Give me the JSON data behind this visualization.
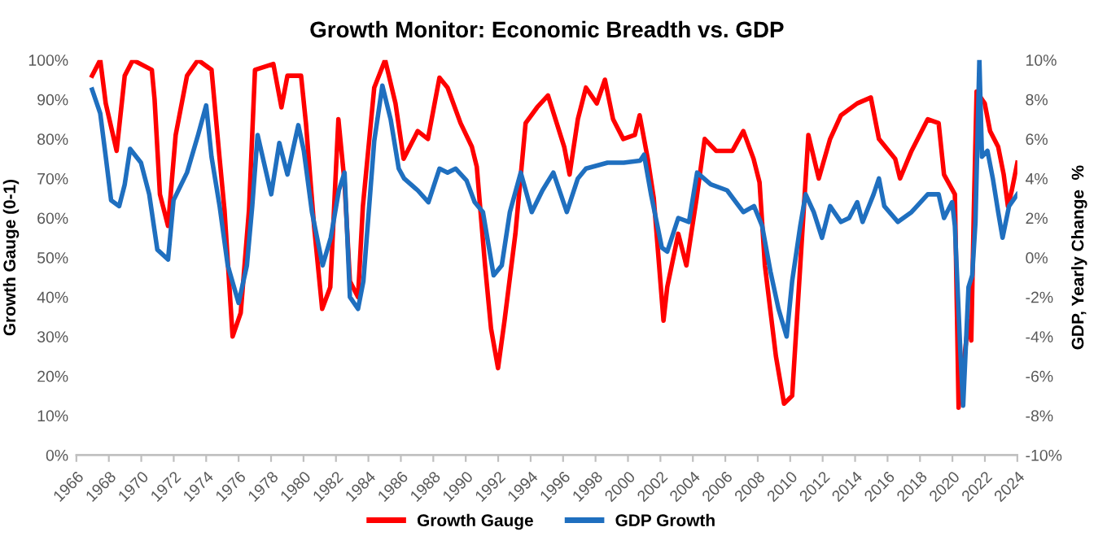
{
  "chart_data": {
    "type": "line",
    "title": "Growth Monitor: Economic Breadth vs. GDP",
    "ylabel": "Growth Gauge (0-1)",
    "y2label": "GDP, Yearly Change  %",
    "xlim": [
      1966,
      2024
    ],
    "xticks": [
      1966,
      1968,
      1970,
      1972,
      1974,
      1976,
      1978,
      1980,
      1982,
      1984,
      1986,
      1988,
      1990,
      1992,
      1994,
      1996,
      1998,
      2000,
      2002,
      2004,
      2006,
      2008,
      2010,
      2012,
      2014,
      2016,
      2018,
      2020,
      2022,
      2024
    ],
    "ylim": [
      0,
      100
    ],
    "yticks": [
      {
        "value": 0,
        "label": "0%"
      },
      {
        "value": 10,
        "label": "10%"
      },
      {
        "value": 20,
        "label": "20%"
      },
      {
        "value": 30,
        "label": "30%"
      },
      {
        "value": 40,
        "label": "40%"
      },
      {
        "value": 50,
        "label": "50%"
      },
      {
        "value": 60,
        "label": "60%"
      },
      {
        "value": 70,
        "label": "70%"
      },
      {
        "value": 80,
        "label": "80%"
      },
      {
        "value": 90,
        "label": "90%"
      },
      {
        "value": 100,
        "label": "100%"
      }
    ],
    "y2lim": [
      -10,
      10
    ],
    "y2ticks": [
      {
        "value": -10,
        "label": "-10%"
      },
      {
        "value": -8,
        "label": "-8%"
      },
      {
        "value": -6,
        "label": "-6%"
      },
      {
        "value": -4,
        "label": "-4%"
      },
      {
        "value": -2,
        "label": "-2%"
      },
      {
        "value": 0,
        "label": "0%"
      },
      {
        "value": 2,
        "label": "2%"
      },
      {
        "value": 4,
        "label": "4%"
      },
      {
        "value": 6,
        "label": "6%"
      },
      {
        "value": 8,
        "label": "8%"
      },
      {
        "value": 10,
        "label": "10%"
      }
    ],
    "grid": false,
    "legend": "bottom",
    "marker": "none",
    "line_style": "solid",
    "series": [
      {
        "name": "Growth Gauge",
        "color": "#ff0000",
        "x": [
          1966.97,
          1967.47,
          1967.81,
          1968.48,
          1968.98,
          1969.48,
          1970.65,
          1970.82,
          1971.15,
          1971.65,
          1972.12,
          1972.82,
          1973.5,
          1974.33,
          1974.83,
          1975.13,
          1975.63,
          1976.13,
          1976.64,
          1977.01,
          1978.14,
          1978.64,
          1979.01,
          1979.85,
          1980.15,
          1980.65,
          1981.15,
          1981.65,
          1982.15,
          1982.53,
          1982.86,
          1983.36,
          1983.66,
          1984.36,
          1985.03,
          1985.67,
          1986.17,
          1987.04,
          1987.67,
          1988.38,
          1988.88,
          1989.68,
          1990.38,
          1990.68,
          1991.19,
          1991.56,
          1991.99,
          1992.39,
          1993.06,
          1993.69,
          1994.4,
          1995.07,
          1996.07,
          1996.4,
          1996.91,
          1997.41,
          1998.08,
          1998.58,
          1999.08,
          1999.71,
          2000.42,
          2000.72,
          2001.22,
          2001.59,
          2001.92,
          2002.19,
          2002.42,
          2003.1,
          2003.6,
          2004.23,
          2004.73,
          2005.43,
          2006.44,
          2007.11,
          2007.74,
          2008.11,
          2008.44,
          2009.12,
          2009.62,
          2010.12,
          2010.62,
          2011.12,
          2011.76,
          2012.46,
          2013.13,
          2014.13,
          2014.97,
          2015.47,
          2016.47,
          2016.77,
          2017.48,
          2018.48,
          2019.15,
          2019.48,
          2020.15,
          2020.38,
          2020.99,
          2021.16,
          2021.32,
          2021.49,
          2021.99,
          2022.32,
          2022.82,
          2023.16,
          2023.42,
          2023.66,
          2024.0
        ],
        "values": [
          96,
          100,
          89,
          77,
          96,
          100,
          97.5,
          90,
          66,
          58,
          81,
          96,
          100,
          97.5,
          75,
          62,
          30,
          36,
          62,
          97.5,
          99,
          88,
          96,
          96,
          84,
          58,
          37,
          42.5,
          85,
          69,
          44,
          40,
          63,
          93,
          100,
          89,
          75,
          82,
          80,
          95.5,
          93,
          84,
          78,
          73,
          48,
          32,
          22,
          34,
          56,
          84,
          88,
          91,
          78,
          71,
          85,
          93,
          89,
          95,
          85,
          80,
          81,
          86,
          75,
          65,
          48,
          34,
          42.5,
          56,
          48,
          65,
          80,
          77,
          77,
          82,
          75,
          69,
          48,
          25,
          13,
          15,
          48,
          81,
          70,
          80,
          86,
          89,
          90.5,
          80,
          75,
          70,
          77,
          85,
          84,
          71,
          66,
          12,
          34,
          29,
          62,
          92,
          89,
          82,
          78,
          71,
          63,
          67,
          74
        ]
      },
      {
        "name": "GDP Growth",
        "color": "#1f6fbf",
        "axis": "y2",
        "x": [
          1966.97,
          1967.47,
          1967.81,
          1968.14,
          1968.64,
          1968.98,
          1969.31,
          1969.98,
          1970.49,
          1970.99,
          1971.65,
          1971.99,
          1972.82,
          1973.5,
          1974.0,
          1974.33,
          1974.83,
          1975.33,
          1976.0,
          1976.51,
          1976.84,
          1977.17,
          1978.01,
          1978.51,
          1979.01,
          1979.68,
          1980.02,
          1980.52,
          1981.18,
          1981.68,
          1982.18,
          1982.53,
          1982.86,
          1983.36,
          1983.69,
          1984.36,
          1984.86,
          1985.37,
          1985.87,
          1986.2,
          1987.04,
          1987.7,
          1988.38,
          1988.88,
          1989.38,
          1990.05,
          1990.55,
          1991.06,
          1991.72,
          1992.22,
          1992.72,
          1993.39,
          1994.07,
          1994.73,
          1995.4,
          1996.23,
          1996.91,
          1997.41,
          1998.74,
          1999.74,
          2000.75,
          2000.99,
          2001.42,
          2002.09,
          2002.42,
          2003.1,
          2003.76,
          2004.26,
          2005.1,
          2006.11,
          2007.11,
          2007.77,
          2008.27,
          2008.78,
          2009.28,
          2009.78,
          2010.12,
          2010.62,
          2010.95,
          2011.45,
          2011.96,
          2012.46,
          2013.13,
          2013.63,
          2014.13,
          2014.46,
          2015.14,
          2015.47,
          2015.8,
          2016.64,
          2017.48,
          2018.48,
          2019.15,
          2019.48,
          2019.98,
          2020.15,
          2020.49,
          2020.66,
          2020.99,
          2021.22,
          2021.42,
          2021.66,
          2021.82,
          2022.16,
          2022.49,
          2022.82,
          2023.09,
          2023.49,
          2024.0
        ],
        "values": [
          8.5,
          7.3,
          5.1,
          2.9,
          2.6,
          3.7,
          5.5,
          4.8,
          3.2,
          0.4,
          -0.1,
          2.9,
          4.3,
          6.2,
          7.7,
          5.1,
          2.6,
          -0.4,
          -2.3,
          -0.4,
          2.6,
          6.2,
          3.2,
          5.8,
          4.2,
          6.7,
          5.4,
          2.3,
          -0.4,
          1.0,
          3.4,
          4.3,
          -2.0,
          -2.6,
          -1.2,
          5.9,
          8.7,
          7.0,
          4.5,
          4.0,
          3.4,
          2.8,
          4.5,
          4.3,
          4.5,
          3.9,
          2.8,
          2.3,
          -0.9,
          -0.4,
          2.3,
          4.3,
          2.3,
          3.4,
          4.3,
          2.3,
          4.0,
          4.5,
          4.8,
          4.8,
          4.9,
          5.2,
          3.2,
          0.5,
          0.3,
          2.0,
          1.8,
          4.3,
          3.7,
          3.4,
          2.3,
          2.6,
          1.6,
          -0.7,
          -2.6,
          -4.0,
          -1.2,
          1.6,
          3.2,
          2.3,
          1.0,
          2.6,
          1.8,
          2.0,
          2.8,
          1.8,
          3.2,
          4.0,
          2.6,
          1.8,
          2.3,
          3.2,
          3.2,
          2.0,
          2.8,
          1.6,
          -4.8,
          -7.5,
          -1.5,
          -0.9,
          1.8,
          10,
          5.1,
          5.4,
          4.0,
          2.3,
          1.0,
          2.6,
          3.2
        ]
      }
    ]
  }
}
